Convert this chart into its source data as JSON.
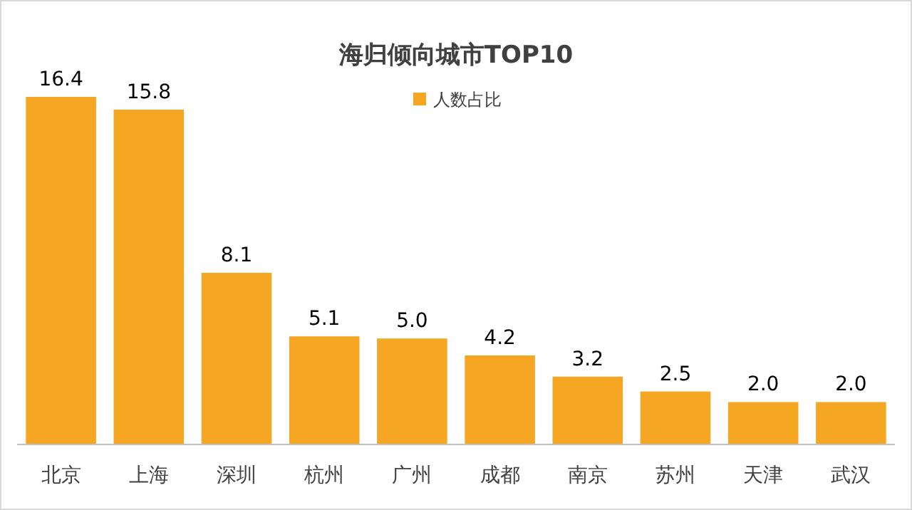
{
  "chart_data": {
    "type": "bar",
    "title": "海归倾向城市TOP10",
    "categories": [
      "北京",
      "上海",
      "深圳",
      "杭州",
      "广州",
      "成都",
      "南京",
      "苏州",
      "天津",
      "武汉"
    ],
    "series": [
      {
        "name": "人数占比",
        "color": "#f5a623",
        "values": [
          16.4,
          15.8,
          8.1,
          5.1,
          5.0,
          4.2,
          3.2,
          2.5,
          2.0,
          2.0
        ],
        "value_labels": [
          "16.4",
          "15.8",
          "8.1",
          "5.1",
          "5.0",
          "4.2",
          "3.2",
          "2.5",
          "2.0",
          "2.0"
        ]
      }
    ],
    "legend": "top"
  }
}
